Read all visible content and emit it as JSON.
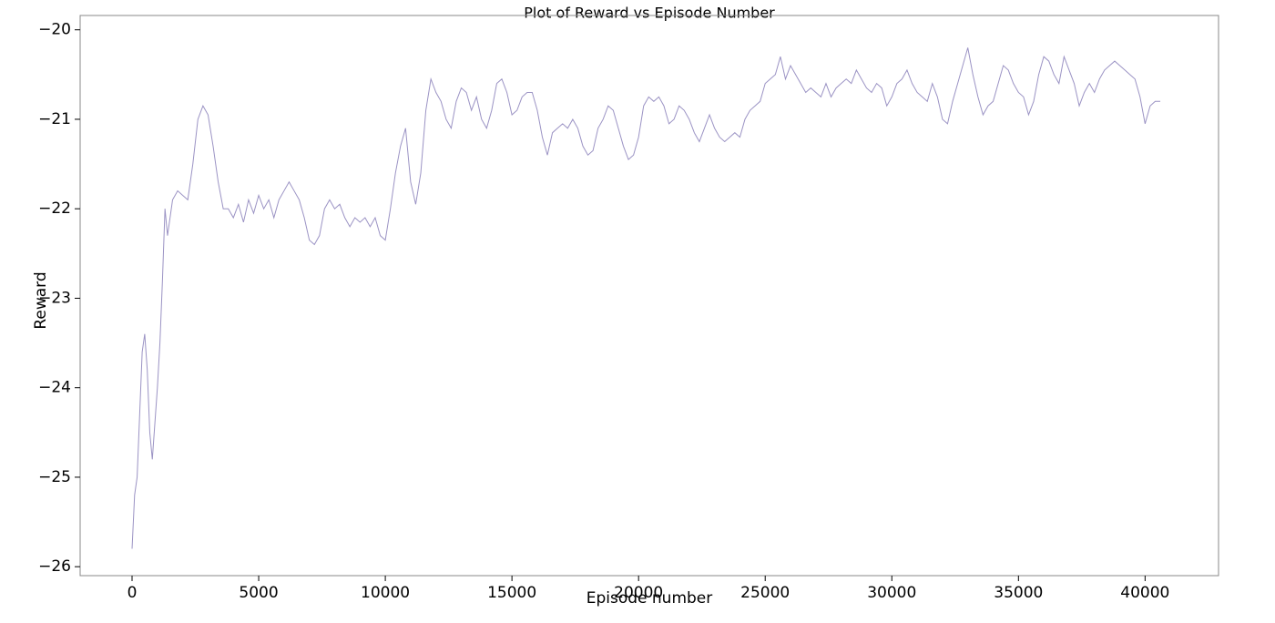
{
  "chart_data": {
    "type": "line",
    "title": "Plot of Reward vs Episode Number",
    "x_label": "Episode number",
    "y_label": "Reward",
    "color": "#9b93c4",
    "x": [
      0,
      100,
      200,
      300,
      400,
      500,
      600,
      700,
      800,
      900,
      1000,
      1100,
      1200,
      1300,
      1400,
      1600,
      1800,
      2000,
      2200,
      2400,
      2600,
      2800,
      3000,
      3200,
      3400,
      3600,
      3800,
      4000,
      4200,
      4400,
      4600,
      4800,
      5000,
      5200,
      5400,
      5600,
      5800,
      6000,
      6200,
      6400,
      6600,
      6800,
      7000,
      7200,
      7400,
      7600,
      7800,
      8000,
      8200,
      8400,
      8600,
      8800,
      9000,
      9200,
      9400,
      9600,
      9800,
      10000,
      10200,
      10400,
      10600,
      10800,
      11000,
      11200,
      11400,
      11600,
      11800,
      12000,
      12200,
      12400,
      12600,
      12800,
      13000,
      13200,
      13400,
      13600,
      13800,
      14000,
      14200,
      14400,
      14600,
      14800,
      15000,
      15200,
      15400,
      15600,
      15800,
      16000,
      16200,
      16400,
      16600,
      16800,
      17000,
      17200,
      17400,
      17600,
      17800,
      18000,
      18200,
      18400,
      18600,
      18800,
      19000,
      19200,
      19400,
      19600,
      19800,
      20000,
      20200,
      20400,
      20600,
      20800,
      21000,
      21200,
      21400,
      21600,
      21800,
      22000,
      22200,
      22400,
      22600,
      22800,
      23000,
      23200,
      23400,
      23600,
      23800,
      24000,
      24200,
      24400,
      24600,
      24800,
      25000,
      25200,
      25400,
      25600,
      25800,
      26000,
      26200,
      26400,
      26600,
      26800,
      27000,
      27200,
      27400,
      27600,
      27800,
      28000,
      28200,
      28400,
      28600,
      28800,
      29000,
      29200,
      29400,
      29600,
      29800,
      30000,
      30200,
      30400,
      30600,
      30800,
      31000,
      31200,
      31400,
      31600,
      31800,
      32000,
      32200,
      32400,
      32600,
      32800,
      33000,
      33200,
      33400,
      33600,
      33800,
      34000,
      34200,
      34400,
      34600,
      34800,
      35000,
      35200,
      35400,
      35600,
      35800,
      36000,
      36200,
      36400,
      36600,
      36800,
      37000,
      37200,
      37400,
      37600,
      37800,
      38000,
      38200,
      38400,
      38600,
      38800,
      39000,
      39200,
      39400,
      39600,
      39800,
      40000,
      40200,
      40400,
      40600
    ],
    "values": [
      -25.8,
      -25.2,
      -25.0,
      -24.3,
      -23.6,
      -23.4,
      -23.8,
      -24.5,
      -24.8,
      -24.4,
      -24.0,
      -23.5,
      -22.8,
      -22.0,
      -22.3,
      -21.9,
      -21.8,
      -21.85,
      -21.9,
      -21.5,
      -21.0,
      -20.85,
      -20.95,
      -21.3,
      -21.7,
      -22.0,
      -22.0,
      -22.1,
      -21.95,
      -22.15,
      -21.9,
      -22.05,
      -21.85,
      -22.0,
      -21.9,
      -22.1,
      -21.9,
      -21.8,
      -21.7,
      -21.8,
      -21.9,
      -22.1,
      -22.35,
      -22.4,
      -22.3,
      -22.0,
      -21.9,
      -22.0,
      -21.95,
      -22.1,
      -22.2,
      -22.1,
      -22.15,
      -22.1,
      -22.2,
      -22.1,
      -22.3,
      -22.35,
      -22.0,
      -21.6,
      -21.3,
      -21.1,
      -21.7,
      -21.95,
      -21.6,
      -20.9,
      -20.55,
      -20.7,
      -20.8,
      -21.0,
      -21.1,
      -20.8,
      -20.65,
      -20.7,
      -20.9,
      -20.75,
      -21.0,
      -21.1,
      -20.9,
      -20.6,
      -20.55,
      -20.7,
      -20.95,
      -20.9,
      -20.75,
      -20.7,
      -20.7,
      -20.9,
      -21.2,
      -21.4,
      -21.15,
      -21.1,
      -21.05,
      -21.1,
      -21.0,
      -21.1,
      -21.3,
      -21.4,
      -21.35,
      -21.1,
      -21.0,
      -20.85,
      -20.9,
      -21.1,
      -21.3,
      -21.45,
      -21.4,
      -21.2,
      -20.85,
      -20.75,
      -20.8,
      -20.75,
      -20.85,
      -21.05,
      -21.0,
      -20.85,
      -20.9,
      -21.0,
      -21.15,
      -21.25,
      -21.1,
      -20.95,
      -21.1,
      -21.2,
      -21.25,
      -21.2,
      -21.15,
      -21.2,
      -21.0,
      -20.9,
      -20.85,
      -20.8,
      -20.6,
      -20.55,
      -20.5,
      -20.3,
      -20.55,
      -20.4,
      -20.5,
      -20.6,
      -20.7,
      -20.65,
      -20.7,
      -20.75,
      -20.6,
      -20.75,
      -20.65,
      -20.6,
      -20.55,
      -20.6,
      -20.45,
      -20.55,
      -20.65,
      -20.7,
      -20.6,
      -20.65,
      -20.85,
      -20.75,
      -20.6,
      -20.55,
      -20.45,
      -20.6,
      -20.7,
      -20.75,
      -20.8,
      -20.6,
      -20.75,
      -21.0,
      -21.05,
      -20.8,
      -20.6,
      -20.4,
      -20.2,
      -20.5,
      -20.75,
      -20.95,
      -20.85,
      -20.8,
      -20.6,
      -20.4,
      -20.45,
      -20.6,
      -20.7,
      -20.75,
      -20.95,
      -20.8,
      -20.5,
      -20.3,
      -20.35,
      -20.5,
      -20.6,
      -20.3,
      -20.45,
      -20.6,
      -20.85,
      -20.7,
      -20.6,
      -20.7,
      -20.55,
      -20.45,
      -20.4,
      -20.35,
      -20.4,
      -20.45,
      -20.5,
      -20.55,
      -20.75,
      -21.05,
      -20.85,
      -20.8,
      -20.8
    ],
    "xlim": [
      -2050,
      42900
    ],
    "ylim": [
      -26.1,
      -19.84
    ],
    "xticks": [
      0,
      5000,
      10000,
      15000,
      20000,
      25000,
      30000,
      35000,
      40000
    ],
    "yticks": [
      {
        "value": -26,
        "label": "−26"
      },
      {
        "value": -25,
        "label": "−25"
      },
      {
        "value": -24,
        "label": "−24"
      },
      {
        "value": -23,
        "label": "−23"
      },
      {
        "value": -22,
        "label": "−22"
      },
      {
        "value": -21,
        "label": "−21"
      },
      {
        "value": -20,
        "label": "−20"
      }
    ],
    "grid": false
  }
}
